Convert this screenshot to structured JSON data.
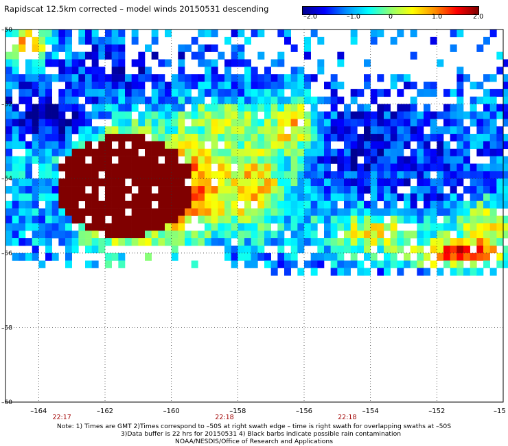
{
  "title": "Rapidscat 12.5km corrected – model winds 20150531 descending",
  "colorbar": {
    "ticks": [
      "–2.0",
      "–1.0",
      "0",
      "1.0",
      "2.0"
    ],
    "range": [
      -2.0,
      2.0
    ],
    "colors": [
      "#000090",
      "#0000ff",
      "#0090ff",
      "#00ffff",
      "#90ff70",
      "#ffff00",
      "#ff9000",
      "#ff0000",
      "#800000"
    ]
  },
  "chart_data": {
    "type": "heatmap",
    "title": "Rapidscat 12.5km corrected – model winds 20150531 descending",
    "xlabel": "",
    "ylabel": "",
    "xlim": [
      -165,
      -150
    ],
    "ylim": [
      -60,
      -50
    ],
    "x_ticks": [
      "–164",
      "–162",
      "–160",
      "–158",
      "–156",
      "–154",
      "–152",
      "–15"
    ],
    "y_ticks": [
      "–50",
      "–52",
      "–54",
      "–56",
      "–58",
      "–60"
    ],
    "time_labels": [
      {
        "text": "22:17",
        "lon": -163.3
      },
      {
        "text": "22:18",
        "lon": -158.4
      },
      {
        "text": "22:18",
        "lon": -154.7
      }
    ],
    "grid": true,
    "value_range": [
      -2.0,
      2.0
    ],
    "features": [
      {
        "lon": -161.3,
        "lat": -54.2,
        "value": 2.0,
        "rx": 2.3,
        "ry": 1.5
      },
      {
        "lon": -159.2,
        "lat": -54.3,
        "value": 1.2,
        "rx": 1.3,
        "ry": 0.9
      },
      {
        "lon": -157.5,
        "lat": -54.2,
        "value": 0.6,
        "rx": 1.2,
        "ry": 1.2
      },
      {
        "lon": -156.3,
        "lat": -52.6,
        "value": 1.3,
        "rx": 0.8,
        "ry": 0.7
      },
      {
        "lon": -163.5,
        "lat": -54.6,
        "value": -1.0,
        "rx": 1.2,
        "ry": 1.5
      },
      {
        "lon": -163.6,
        "lat": -52.3,
        "value": -1.9,
        "rx": 1.2,
        "ry": 0.8
      },
      {
        "lon": -161.0,
        "lat": -51.0,
        "value": -1.5,
        "rx": 1.8,
        "ry": 0.8
      },
      {
        "lon": -158.5,
        "lat": -52.4,
        "value": 0.3,
        "rx": 1.2,
        "ry": 0.5
      },
      {
        "lon": -154.2,
        "lat": -53.0,
        "value": -1.6,
        "rx": 1.6,
        "ry": 1.3
      },
      {
        "lon": -152.3,
        "lat": -53.6,
        "value": -1.4,
        "rx": 1.3,
        "ry": 1.3
      },
      {
        "lon": -150.5,
        "lat": -55.2,
        "value": 0.5,
        "rx": 0.9,
        "ry": 0.6
      },
      {
        "lon": -151.2,
        "lat": -56.0,
        "value": 1.8,
        "rx": 1.3,
        "ry": 0.4
      },
      {
        "lon": -154.0,
        "lat": -55.5,
        "value": 0.4,
        "rx": 1.8,
        "ry": 0.6
      },
      {
        "lon": -156.0,
        "lat": -55.6,
        "value": -0.8,
        "rx": 1.0,
        "ry": 0.5
      },
      {
        "lon": -164.3,
        "lat": -50.4,
        "value": 1.4,
        "rx": 0.6,
        "ry": 0.4
      }
    ]
  },
  "notes": [
    "Note: 1) Times are GMT 2)Times correspond to –50S at right swath edge – time is right swath for overlapping swaths at –50S",
    "3)Data buffer is 22 hrs for 20150531 4) Black barbs indicate possible rain contamination",
    "NOAA/NESDIS/Office of Research and Applications"
  ]
}
